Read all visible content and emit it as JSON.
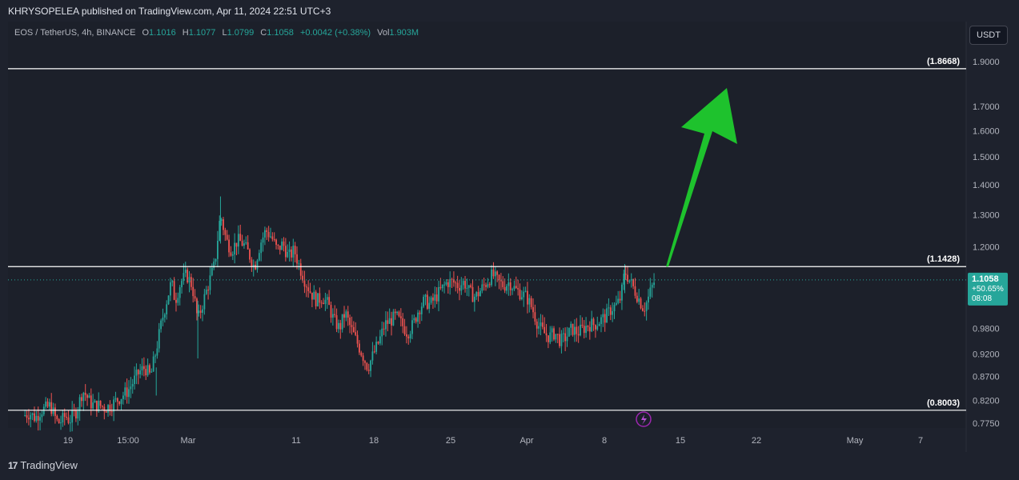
{
  "publish_info": "KHRYSOPELEA published on TradingView.com, Apr 11, 2024 22:51 UTC+3",
  "legend": {
    "symbol": "EOS / TetherUS, 4h, BINANCE",
    "o_label": "O",
    "o": "1.1016",
    "h_label": "H",
    "h": "1.1077",
    "l_label": "L",
    "l": "1.0799",
    "c_label": "C",
    "c": "1.1058",
    "change": "+0.0042 (+0.38%)",
    "vol_label": "Vol",
    "vol": "1.903",
    "vol_unit": "M"
  },
  "currency_button": "USDT",
  "footer": {
    "logo": "17",
    "brand": "TradingView"
  },
  "colors": {
    "up": "#26a69a",
    "down": "#ef5350",
    "arrow": "#1ec22d",
    "bg": "#1e222d",
    "price_badge": "#26a69a"
  },
  "chart_data": {
    "type": "candlestick",
    "symbol": "EOS / TetherUS",
    "interval": "4h",
    "exchange": "BINANCE",
    "y_scale": "log",
    "ylim": [
      0.76,
      2.0
    ],
    "y_ticks": [
      "1.9000",
      "1.7000",
      "1.6000",
      "1.5000",
      "1.4000",
      "1.3000",
      "1.2000",
      "0.9800",
      "0.9200",
      "0.8700",
      "0.8200",
      "0.7750"
    ],
    "x_ticks": [
      "19",
      "15:00",
      "Mar",
      "11",
      "18",
      "25",
      "Apr",
      "8",
      "15",
      "22",
      "May",
      "7"
    ],
    "horizontal_levels": [
      {
        "label": "(1.8668)",
        "value": 1.8668
      },
      {
        "label": "(1.1428)",
        "value": 1.1428
      },
      {
        "label": "(0.8003)",
        "value": 0.8003
      }
    ],
    "current_price": {
      "value": 1.1058,
      "label": "1.1058",
      "change": "+50.65%",
      "countdown": "08:08"
    },
    "arrow": {
      "from_value": 1.1428,
      "to_value": 1.8,
      "direction": "up"
    },
    "price_path": [
      [
        0,
        0.79
      ],
      [
        6,
        0.795
      ],
      [
        12,
        0.785
      ],
      [
        18,
        0.8
      ],
      [
        24,
        0.805
      ],
      [
        28,
        0.81
      ],
      [
        32,
        0.79
      ],
      [
        36,
        0.775
      ],
      [
        40,
        0.78
      ],
      [
        44,
        0.79
      ],
      [
        48,
        0.78
      ],
      [
        52,
        0.79
      ],
      [
        56,
        0.8
      ],
      [
        62,
        0.84
      ],
      [
        66,
        0.83
      ],
      [
        70,
        0.815
      ],
      [
        74,
        0.81
      ],
      [
        80,
        0.81
      ],
      [
        86,
        0.805
      ],
      [
        92,
        0.81
      ],
      [
        98,
        0.82
      ],
      [
        104,
        0.83
      ],
      [
        110,
        0.84
      ],
      [
        116,
        0.86
      ],
      [
        122,
        0.88
      ],
      [
        128,
        0.89
      ],
      [
        134,
        0.87
      ],
      [
        140,
        0.93
      ],
      [
        146,
        1.0
      ],
      [
        152,
        1.06
      ],
      [
        156,
        1.1
      ],
      [
        160,
        1.05
      ],
      [
        166,
        1.1
      ],
      [
        172,
        1.12
      ],
      [
        178,
        1.09
      ],
      [
        184,
        1.0
      ],
      [
        190,
        1.05
      ],
      [
        196,
        1.1
      ],
      [
        202,
        1.15
      ],
      [
        208,
        1.3
      ],
      [
        214,
        1.22
      ],
      [
        220,
        1.19
      ],
      [
        226,
        1.22
      ],
      [
        232,
        1.21
      ],
      [
        238,
        1.18
      ],
      [
        244,
        1.14
      ],
      [
        250,
        1.21
      ],
      [
        256,
        1.25
      ],
      [
        262,
        1.23
      ],
      [
        268,
        1.19
      ],
      [
        274,
        1.21
      ],
      [
        280,
        1.17
      ],
      [
        286,
        1.19
      ],
      [
        292,
        1.14
      ],
      [
        298,
        1.1
      ],
      [
        304,
        1.07
      ],
      [
        310,
        1.05
      ],
      [
        316,
        1.06
      ],
      [
        322,
        1.04
      ],
      [
        328,
        1.0
      ],
      [
        334,
        0.98
      ],
      [
        340,
        1.02
      ],
      [
        346,
        0.98
      ],
      [
        352,
        0.95
      ],
      [
        358,
        0.92
      ],
      [
        364,
        0.89
      ],
      [
        370,
        0.92
      ],
      [
        376,
        0.95
      ],
      [
        382,
        0.99
      ],
      [
        388,
        1.0
      ],
      [
        394,
        1.01
      ],
      [
        400,
        0.99
      ],
      [
        406,
        0.97
      ],
      [
        412,
        0.99
      ],
      [
        418,
        1.03
      ],
      [
        424,
        1.05
      ],
      [
        430,
        1.04
      ],
      [
        436,
        1.06
      ],
      [
        442,
        1.08
      ],
      [
        448,
        1.1
      ],
      [
        454,
        1.1
      ],
      [
        460,
        1.09
      ],
      [
        466,
        1.1
      ],
      [
        472,
        1.07
      ],
      [
        478,
        1.06
      ],
      [
        484,
        1.08
      ],
      [
        490,
        1.1
      ],
      [
        496,
        1.12
      ],
      [
        502,
        1.1
      ],
      [
        508,
        1.09
      ],
      [
        514,
        1.1
      ],
      [
        520,
        1.08
      ],
      [
        526,
        1.07
      ],
      [
        532,
        1.06
      ],
      [
        538,
        1.03
      ],
      [
        544,
        0.99
      ],
      [
        550,
        0.97
      ],
      [
        556,
        0.96
      ],
      [
        562,
        0.97
      ],
      [
        568,
        0.95
      ],
      [
        574,
        0.96
      ],
      [
        580,
        0.98
      ],
      [
        586,
        0.97
      ],
      [
        592,
        0.98
      ],
      [
        598,
        0.99
      ],
      [
        604,
        0.99
      ],
      [
        610,
        1.0
      ],
      [
        616,
        1.01
      ],
      [
        622,
        1.03
      ],
      [
        628,
        1.04
      ],
      [
        632,
        1.06
      ],
      [
        636,
        1.13
      ],
      [
        640,
        1.11
      ],
      [
        644,
        1.09
      ],
      [
        648,
        1.07
      ],
      [
        652,
        1.05
      ],
      [
        656,
        1.03
      ],
      [
        660,
        1.05
      ],
      [
        664,
        1.08
      ],
      [
        668,
        1.106
      ]
    ]
  }
}
